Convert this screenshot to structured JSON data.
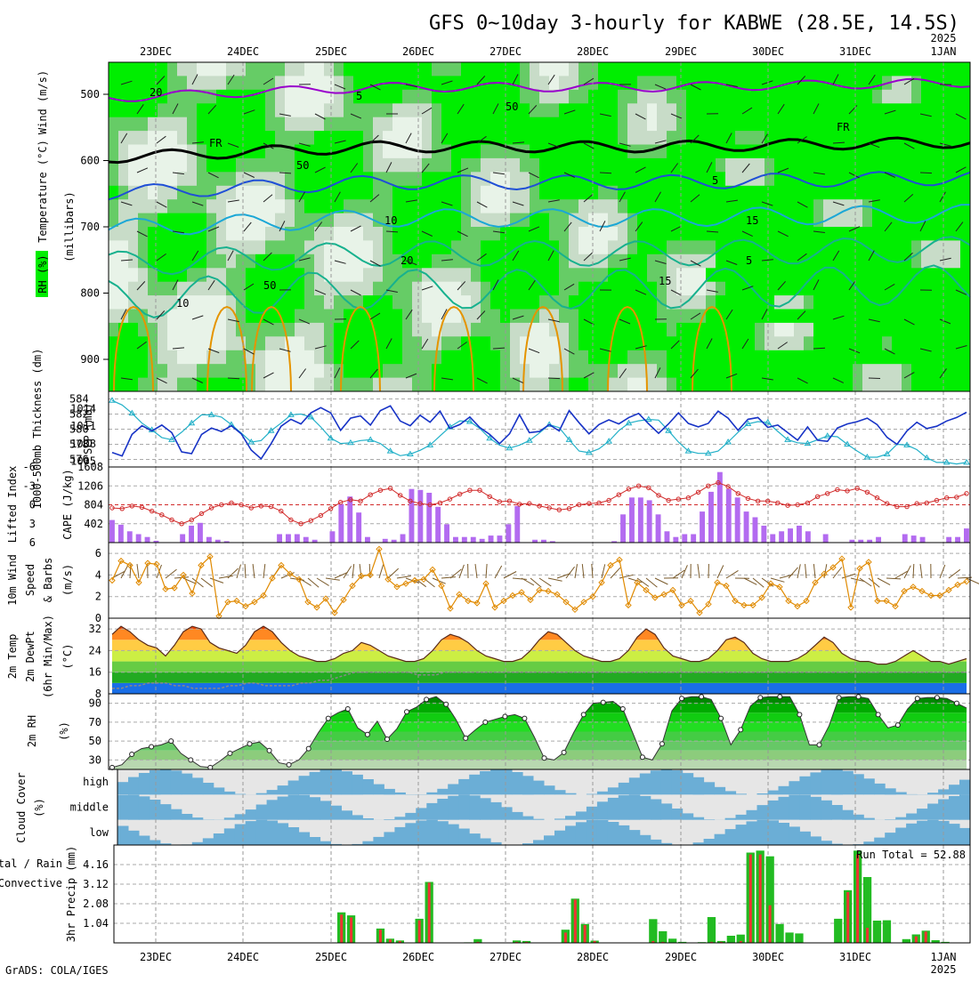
{
  "title": "GFS 0~10day 3-hourly for KABWE (28.5E, 14.5S)",
  "footer": "GrADS: COLA/IGES",
  "dates": [
    "23DEC",
    "24DEC",
    "25DEC",
    "26DEC",
    "27DEC",
    "28DEC",
    "29DEC",
    "30DEC",
    "31DEC",
    "1JAN"
  ],
  "year_label": "2025",
  "colors": {
    "rh_green": "#00ee00",
    "rh_mid": "#66cc66",
    "rh_light": "#c8dcc8",
    "rh_pale": "#e8f3e8",
    "temp_purple": "#9900cc",
    "fr_black": "#000000",
    "temp_blue": "#1f4fd6",
    "temp_cyan": "#1ba7d6",
    "temp_teal": "#17b18e",
    "temp_orange": "#e59400",
    "temp_magenta": "#cc0066",
    "thickness": "#22b0c8",
    "slp": "#1733c6",
    "lifted": "#d12a2a",
    "cape": "#b36bf0",
    "wind": "#e08a00",
    "cloud": "#6baed6",
    "precip_total": "#22bb22",
    "precip_conv": "#ee3333"
  },
  "chart_data": [
    {
      "type": "heatmap",
      "name": "upper",
      "ylabel_left": "(millibars)",
      "legend_labels": [
        "RH (%)",
        "Temperature (°C)",
        "Wind (m/s)"
      ],
      "y_ticks": [
        500,
        600,
        700,
        800,
        900
      ],
      "contour_labels": [
        "5",
        "FR",
        "FR",
        "5",
        "10",
        "15",
        "20",
        "5",
        "10",
        "15",
        "20",
        "50",
        "50",
        "50"
      ],
      "note": "RH shading, temperature contours and wind barbs"
    },
    {
      "type": "line",
      "name": "thickness_slp",
      "ylabel_left": "1000-500mb Thickness (dm)",
      "ylabel_right": "SLP (mb)",
      "left_ticks": [
        576,
        578,
        580,
        582,
        584
      ],
      "right_ticks": [
        1005,
        1008,
        1011,
        1014
      ],
      "series": [
        {
          "name": "Thickness",
          "values": [
            583.8,
            583.2,
            582.1,
            580.8,
            579.9,
            578.9,
            578.6,
            579.6,
            580.8,
            581.9,
            581.9,
            581.6,
            580.6,
            579.5,
            578.3,
            578.5,
            579.8,
            580.8,
            581.9,
            582.0,
            581.6,
            580.3,
            578.8,
            578.1,
            578.2,
            578.5,
            578.6,
            578.1,
            577.1,
            576.5,
            576.7,
            577.2,
            577.9,
            579.1,
            580.3,
            581.1,
            581.0,
            580.1,
            578.8,
            577.9,
            577.5,
            577.9,
            578.5,
            579.5,
            580.6,
            580.2,
            578.6,
            577.1,
            576.9,
            577.4,
            578.4,
            579.8,
            580.8,
            581.1,
            581.3,
            581.2,
            579.8,
            578.3,
            577.1,
            576.8,
            576.8,
            577.1,
            578.3,
            579.6,
            580.7,
            581.0,
            580.9,
            579.7,
            578.6,
            578.2,
            578.1,
            578.6,
            579.1,
            579.0,
            578.0,
            577.1,
            576.3,
            576.3,
            576.7,
            578.0,
            577.9,
            577.3,
            576.2,
            575.6,
            575.6,
            575.4,
            575.6
          ]
        },
        {
          "name": "SLP",
          "values": [
            1006.5,
            1005.9,
            1009.6,
            1011.1,
            1010.2,
            1011.2,
            1009.9,
            1006.6,
            1006.3,
            1009.6,
            1010.7,
            1010.1,
            1011.1,
            1009.7,
            1006.9,
            1005.4,
            1008.0,
            1011.0,
            1012.2,
            1011.4,
            1013.3,
            1014.2,
            1013.3,
            1010.3,
            1012.4,
            1012.8,
            1011.2,
            1013.7,
            1014.5,
            1011.9,
            1011.1,
            1012.9,
            1011.7,
            1013.6,
            1010.6,
            1011.3,
            1012.6,
            1010.8,
            1009.6,
            1008.0,
            1009.7,
            1013.0,
            1009.9,
            1010.1,
            1011.3,
            1010.2,
            1013.7,
            1011.6,
            1009.7,
            1011.3,
            1012.1,
            1011.4,
            1012.5,
            1013.2,
            1011.4,
            1009.8,
            1011.4,
            1013.3,
            1011.5,
            1010.9,
            1011.5,
            1013.6,
            1012.4,
            1010.3,
            1012.2,
            1012.5,
            1010.8,
            1011.2,
            1009.9,
            1008.6,
            1010.9,
            1008.6,
            1008.4,
            1010.7,
            1011.4,
            1011.8,
            1012.4,
            1011.3,
            1009.1,
            1007.9,
            1010.2,
            1011.7,
            1010.6,
            1011.0,
            1011.9,
            1012.5,
            1013.4
          ]
        }
      ]
    },
    {
      "type": "bar",
      "name": "lifted_cape",
      "ylabel_left": "Lifted Index",
      "ylabel_right": "CAPE (J/kg)",
      "left_ticks": [
        -6,
        -3,
        0,
        3,
        6
      ],
      "right_ticks": [
        402,
        804,
        1206,
        1608
      ],
      "series": [
        {
          "name": "Lifted Index",
          "values": [
            0.5,
            0.6,
            0.2,
            0.4,
            1.0,
            1.6,
            2.4,
            3.0,
            2.4,
            1.4,
            0.5,
            0.0,
            -0.3,
            0.0,
            0.5,
            0.2,
            0.3,
            1.0,
            2.4,
            3.0,
            2.5,
            1.7,
            0.6,
            -0.4,
            -0.8,
            -0.6,
            -1.6,
            -2.3,
            -2.6,
            -1.5,
            -0.6,
            -0.2,
            0.0,
            -0.3,
            -0.9,
            -1.7,
            -2.3,
            -2.3,
            -1.3,
            -0.5,
            -0.6,
            -0.1,
            -0.2,
            0.2,
            0.5,
            0.8,
            0.6,
            0.0,
            -0.2,
            -0.3,
            -0.7,
            -1.6,
            -2.5,
            -3.0,
            -2.7,
            -1.5,
            -0.7,
            -0.9,
            -1.1,
            -2.0,
            -3.0,
            -3.5,
            -2.9,
            -1.8,
            -1.0,
            -0.6,
            -0.6,
            -0.3,
            0.1,
            0.0,
            -0.3,
            -1.3,
            -1.8,
            -2.4,
            -2.2,
            -2.6,
            -2.0,
            -1.1,
            -0.2,
            0.3,
            0.3,
            -0.2,
            -0.3,
            -0.7,
            -1.1,
            -1.2,
            -1.8
          ]
        },
        {
          "name": "CAPE",
          "values": [
            480,
            380,
            240,
            180,
            120,
            40,
            10,
            0,
            180,
            360,
            420,
            120,
            60,
            30,
            0,
            0,
            0,
            0,
            0,
            180,
            180,
            180,
            120,
            60,
            0,
            240,
            820,
            980,
            640,
            120,
            0,
            80,
            60,
            180,
            1140,
            1120,
            1060,
            760,
            390,
            120,
            120,
            120,
            80,
            150,
            150,
            390,
            780,
            0,
            60,
            60,
            30,
            0,
            0,
            0,
            0,
            0,
            0,
            30,
            600,
            960,
            960,
            900,
            600,
            240,
            120,
            180,
            180,
            660,
            1080,
            1500,
            1140,
            960,
            660,
            540,
            360,
            180,
            240,
            300,
            360,
            240,
            0,
            180,
            0,
            0,
            60,
            60,
            60,
            120,
            0,
            0,
            180,
            150,
            120,
            0,
            0,
            120,
            120,
            300
          ]
        }
      ]
    },
    {
      "type": "line",
      "name": "wind10",
      "ylabel_left": "10m Wind Speed & Barbs (m/s)",
      "left_ticks": [
        0,
        2,
        4,
        6
      ],
      "series": [
        {
          "name": "Speed",
          "values": [
            3.5,
            5.3,
            4.9,
            3.3,
            5.1,
            5.0,
            2.7,
            2.8,
            4.0,
            2.3,
            4.9,
            5.7,
            0.2,
            1.5,
            1.6,
            1.1,
            1.5,
            2.1,
            3.7,
            4.9,
            4.1,
            3.6,
            1.5,
            1.0,
            1.8,
            0.5,
            1.7,
            3.0,
            3.9,
            4.0,
            6.4,
            3.6,
            2.9,
            3.2,
            3.5,
            3.6,
            4.5,
            3.0,
            0.9,
            2.2,
            1.6,
            1.4,
            3.2,
            1.0,
            1.6,
            2.1,
            2.4,
            1.7,
            2.6,
            2.5,
            2.2,
            1.5,
            0.8,
            1.5,
            2.0,
            3.3,
            4.9,
            5.4,
            1.2,
            3.3,
            2.6,
            1.9,
            2.2,
            2.6,
            1.2,
            1.6,
            0.5,
            1.3,
            3.3,
            3.0,
            1.6,
            1.2,
            1.2,
            1.9,
            3.2,
            2.9,
            1.6,
            1.1,
            1.6,
            3.3,
            4.1,
            4.7,
            5.5,
            1.0,
            4.6,
            5.2,
            1.6,
            1.6,
            1.1,
            2.5,
            2.9,
            2.5,
            2.1,
            2.1,
            2.6,
            3.1,
            3.4
          ]
        }
      ]
    },
    {
      "type": "area",
      "name": "temp2m",
      "ylabel_left": "2m Temp 2m DewPt (6hr Min/Max) (°C)",
      "left_ticks": [
        8,
        16,
        24,
        32
      ],
      "series": [
        {
          "name": "Temp",
          "values": [
            30,
            33,
            31,
            28,
            26,
            25,
            22,
            26,
            31,
            33,
            32,
            27,
            25,
            24,
            23,
            26,
            31,
            33,
            31,
            27,
            24,
            22,
            21,
            20,
            20,
            21,
            23,
            24,
            27,
            26,
            24,
            22,
            21,
            20,
            20,
            21,
            24,
            28,
            30,
            29,
            27,
            24,
            22,
            21,
            20,
            20,
            21,
            24,
            28,
            31,
            30,
            27,
            24,
            22,
            21,
            20,
            20,
            21,
            24,
            29,
            32,
            30,
            25,
            22,
            21,
            20,
            20,
            21,
            24,
            28,
            29,
            27,
            23,
            21,
            20,
            20,
            20,
            21,
            23,
            26,
            29,
            27,
            23,
            21,
            20,
            20,
            19,
            19,
            20,
            22,
            24,
            22,
            20,
            20,
            19,
            20,
            21
          ]
        },
        {
          "name": "DewPt",
          "values": [
            10,
            10,
            11,
            11,
            12,
            12,
            12,
            11,
            11,
            10,
            10,
            10,
            10,
            11,
            11,
            12,
            12,
            11,
            11,
            11,
            11,
            12,
            12,
            13,
            13,
            14,
            15,
            16,
            16,
            16,
            16,
            16,
            16,
            16,
            15,
            15,
            15,
            16,
            16,
            16,
            16,
            16,
            16,
            16,
            16,
            16,
            16,
            16,
            16,
            16,
            16,
            16,
            16,
            16,
            16,
            16,
            16,
            16,
            16,
            16,
            16,
            16,
            16,
            16,
            16,
            16,
            16,
            16,
            16,
            16,
            16,
            16,
            16,
            16,
            16,
            16,
            16,
            16,
            16,
            16,
            16,
            16,
            16,
            16,
            16,
            16,
            16,
            16,
            16,
            16,
            16,
            16,
            16,
            16,
            16,
            16
          ]
        }
      ]
    },
    {
      "type": "area",
      "name": "rh2m",
      "ylabel_left": "2m RH (%)",
      "left_ticks": [
        30,
        50,
        70,
        90
      ],
      "series": [
        {
          "name": "RH",
          "values": [
            22,
            25,
            36,
            42,
            44,
            46,
            50,
            37,
            30,
            23,
            22,
            29,
            37,
            42,
            47,
            49,
            40,
            27,
            25,
            30,
            42,
            59,
            74,
            80,
            84,
            64,
            57,
            71,
            52,
            63,
            81,
            86,
            94,
            97,
            89,
            73,
            53,
            62,
            70,
            73,
            76,
            78,
            74,
            54,
            32,
            30,
            38,
            59,
            78,
            90,
            91,
            92,
            84,
            59,
            33,
            30,
            47,
            82,
            95,
            97,
            97,
            94,
            74,
            46,
            62,
            87,
            96,
            97,
            97,
            97,
            78,
            46,
            46,
            66,
            96,
            97,
            97,
            95,
            78,
            64,
            67,
            84,
            95,
            96,
            96,
            95,
            90,
            85
          ]
        }
      ]
    },
    {
      "type": "heatmap",
      "name": "cloud",
      "ylabel_left": "Cloud Cover (%)",
      "row_labels": [
        "high",
        "middle",
        "low"
      ]
    },
    {
      "type": "bar",
      "name": "precip",
      "ylabel_left": "3hr Precip (mm)",
      "legend_labels": [
        "Total / Rain",
        "Convective"
      ],
      "annotation": "Run Total = 52.88",
      "left_ticks": [
        1.04,
        2.08,
        3.12,
        4.16
      ],
      "series": [
        {
          "name": "Total",
          "values": [
            0,
            0,
            0,
            0,
            0,
            0,
            0,
            0,
            0,
            0,
            0,
            0,
            0,
            0,
            0,
            0,
            0,
            0,
            0,
            0,
            0,
            0,
            0,
            1.62,
            1.46,
            0,
            0,
            0.76,
            0.22,
            0.13,
            0,
            1.28,
            3.24,
            0,
            0.02,
            0,
            0.03,
            0.2,
            0,
            0,
            0,
            0.13,
            0.1,
            0,
            0,
            0,
            0.7,
            2.35,
            1.0,
            0.12,
            0,
            0,
            0,
            0.02,
            0.02,
            1.26,
            0.62,
            0.22,
            0.05,
            0,
            0.04,
            1.37,
            0.1,
            0.38,
            0.44,
            4.8,
            4.9,
            4.6,
            1.0,
            0.55,
            0.5,
            0,
            0,
            0,
            1.28,
            2.8,
            4.9,
            3.5,
            1.18,
            1.2,
            0,
            0.2,
            0.45,
            0.65,
            0.14,
            0.05,
            0,
            0
          ]
        },
        {
          "name": "Convective",
          "values": [
            0,
            0,
            0,
            0,
            0,
            0,
            0,
            0,
            0,
            0,
            0,
            0,
            0,
            0,
            0,
            0,
            0,
            0,
            0,
            0,
            0,
            0,
            0,
            1.5,
            1.35,
            0,
            0,
            0.7,
            0.18,
            0.1,
            0,
            1.2,
            3.2,
            0,
            0,
            0,
            0,
            0.05,
            0,
            0,
            0,
            0.05,
            0.05,
            0,
            0,
            0,
            0.55,
            2.3,
            0.95,
            0.1,
            0,
            0,
            0,
            0,
            0,
            0.1,
            0.05,
            0,
            0,
            0,
            0,
            0.05,
            0.05,
            0,
            0.1,
            4.7,
            4.7,
            2.0,
            0,
            0,
            0,
            0,
            0,
            0,
            0,
            2.7,
            4.7,
            0.8,
            0,
            0,
            0,
            0,
            0.35,
            0.6,
            0,
            0,
            0,
            0
          ]
        }
      ]
    }
  ]
}
